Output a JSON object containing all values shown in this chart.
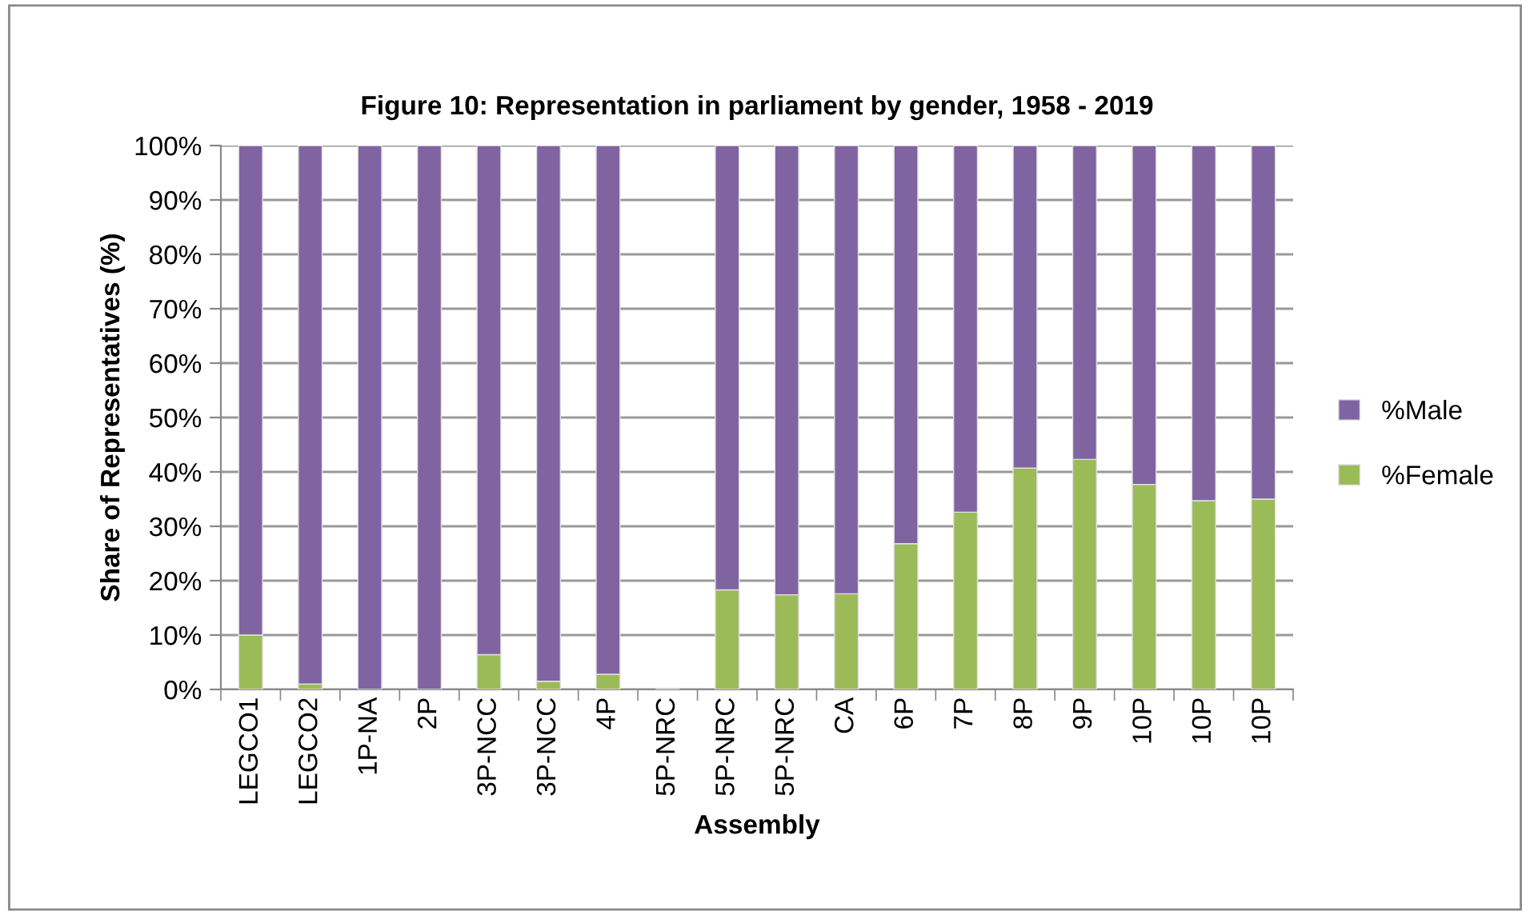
{
  "chart_data": {
    "type": "bar",
    "stacked": true,
    "title": "Figure 10: Representation in parliament by gender, 1958 - 2019",
    "xlabel": "Assembly",
    "ylabel": "Share of Representatives (%)",
    "categories": [
      "LEGCO1",
      "LEGCO2",
      "1P-NA",
      "2P",
      "3P-NCC",
      "3P-NCC",
      "4P",
      "5P-NRC",
      "5P-NRC",
      "5P-NRC",
      "CA",
      "6P",
      "7P",
      "8P",
      "9P",
      "10P",
      "10P",
      "10P"
    ],
    "series": [
      {
        "name": "%Female",
        "color": "#9bbb59",
        "values": [
          10,
          1,
          0,
          0,
          6.4,
          1.5,
          2.8,
          null,
          18.3,
          17.4,
          17.6,
          26.8,
          32.6,
          40.7,
          42.3,
          37.7,
          34.7,
          35.0
        ]
      },
      {
        "name": "%Male",
        "color": "#8064a2",
        "values": [
          90,
          99,
          100,
          100,
          93.6,
          98.5,
          97.2,
          null,
          81.7,
          82.6,
          82.4,
          73.2,
          67.4,
          59.3,
          57.7,
          62.3,
          65.3,
          65.0
        ]
      }
    ],
    "ylim": [
      0,
      100
    ],
    "yticks": [
      {
        "value": 0,
        "label": "0%"
      },
      {
        "value": 10,
        "label": "10%"
      },
      {
        "value": 20,
        "label": "20%"
      },
      {
        "value": 30,
        "label": "30%"
      },
      {
        "value": 40,
        "label": "40%"
      },
      {
        "value": 50,
        "label": "50%"
      },
      {
        "value": 60,
        "label": "60%"
      },
      {
        "value": 70,
        "label": "70%"
      },
      {
        "value": 80,
        "label": "80%"
      },
      {
        "value": 90,
        "label": "90%"
      },
      {
        "value": 100,
        "label": "100%"
      }
    ],
    "grid": "y",
    "legend": "right"
  }
}
